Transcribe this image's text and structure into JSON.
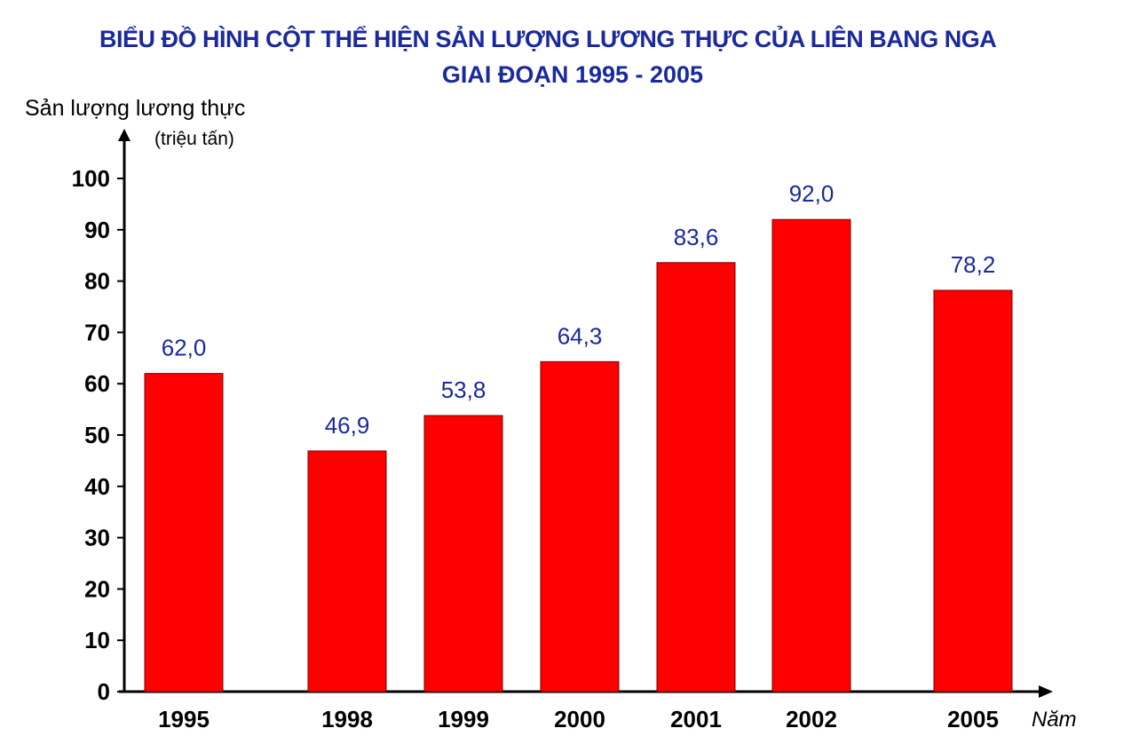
{
  "chart_data": {
    "type": "bar",
    "title_line1": "BIỂU ĐỒ HÌNH CỘT THỂ HIỆN SẢN LƯỢNG LƯƠNG THỰC CỦA LIÊN BANG NGA",
    "title_line2": "GIAI ĐOẠN 1995 - 2005",
    "ylabel": "Sản lượng lương thực",
    "yunit": "(triệu tấn)",
    "xlabel": "Năm",
    "categories": [
      "1995",
      "1998",
      "1999",
      "2000",
      "2001",
      "2002",
      "2005"
    ],
    "values": [
      62.0,
      46.9,
      53.8,
      64.3,
      83.6,
      92.0,
      78.2
    ],
    "value_labels": [
      "62,0",
      "46,9",
      "53,8",
      "64,3",
      "83,6",
      "92,0",
      "78,2"
    ],
    "ylim": [
      0,
      100
    ],
    "yticks": [
      0,
      10,
      20,
      30,
      40,
      50,
      60,
      70,
      80,
      90,
      100
    ],
    "grid": false,
    "colors": {
      "bar": "#ff0000",
      "value_label": "#1a2a9c",
      "title": "#1a2a9c",
      "axis": "#000000"
    }
  }
}
